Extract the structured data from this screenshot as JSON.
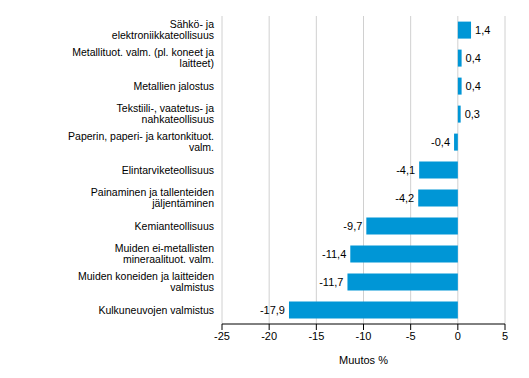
{
  "chart_data": {
    "type": "bar",
    "orientation": "horizontal",
    "categories": [
      "Sähkö- ja elektroniikkateollisuus",
      "Metallituot. valm. (pl. koneet ja laitteet)",
      "Metallien jalostus",
      "Tekstiili-, vaatetus- ja nahkateollisuus",
      "Paperin, paperi- ja kartonkituot. valm.",
      "Elintarviketeollisuus",
      "Painaminen ja tallenteiden jäljentäminen",
      "Kemianteollisuus",
      "Muiden ei-metallisten mineraalituot. valm.",
      "Muiden koneiden ja laitteiden valmistus",
      "Kulkuneuvojen valmistus"
    ],
    "values": [
      1.4,
      0.4,
      0.4,
      0.3,
      -0.4,
      -4.1,
      -4.2,
      -9.7,
      -11.4,
      -11.7,
      -17.9
    ],
    "value_labels": [
      "1,4",
      "0,4",
      "0,4",
      "0,3",
      "-0,4",
      "-4,1",
      "-4,2",
      "-9,7",
      "-11,4",
      "-11,7",
      "-17,9"
    ],
    "data_labels": true,
    "color": "#0096d6",
    "xlabel": "Muutos %",
    "xlim": [
      -25,
      5
    ],
    "xticks": [
      -25,
      -20,
      -15,
      -10,
      -5,
      0,
      5
    ],
    "grid": true
  }
}
